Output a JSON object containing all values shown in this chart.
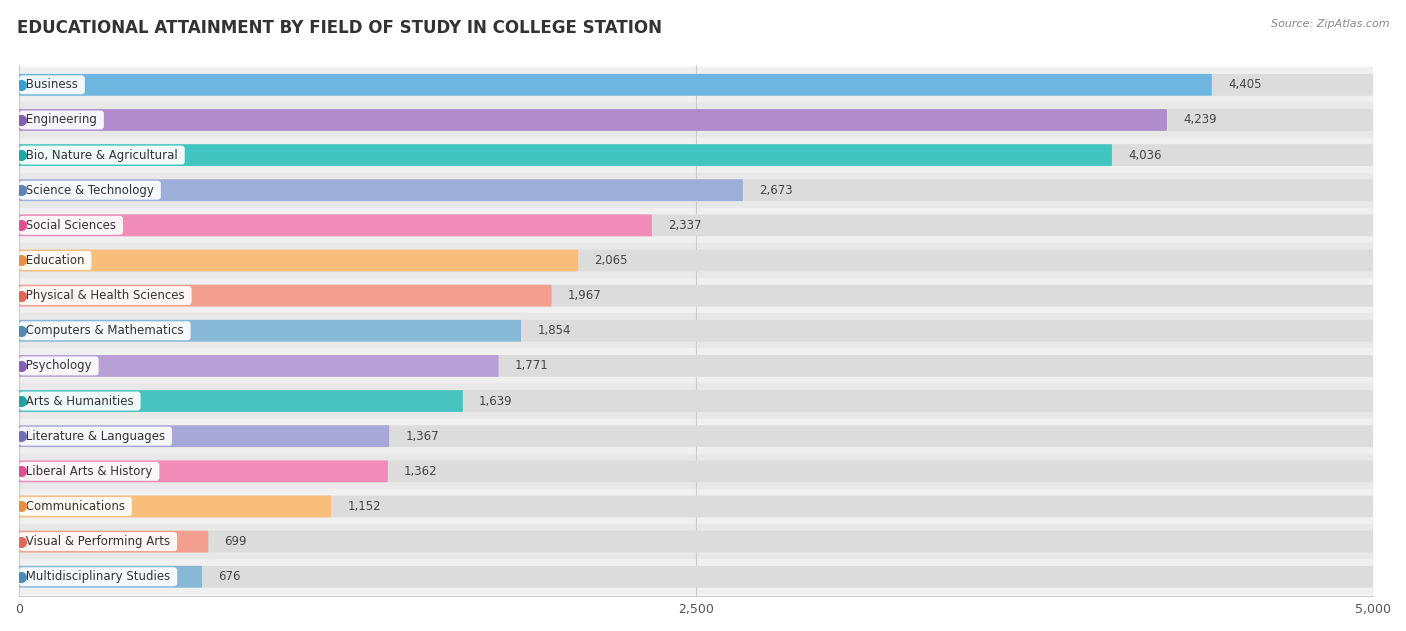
{
  "title": "EDUCATIONAL ATTAINMENT BY FIELD OF STUDY IN COLLEGE STATION",
  "source": "Source: ZipAtlas.com",
  "categories": [
    "Business",
    "Engineering",
    "Bio, Nature & Agricultural",
    "Science & Technology",
    "Social Sciences",
    "Education",
    "Physical & Health Sciences",
    "Computers & Mathematics",
    "Psychology",
    "Arts & Humanities",
    "Literature & Languages",
    "Liberal Arts & History",
    "Communications",
    "Visual & Performing Arts",
    "Multidisciplinary Studies"
  ],
  "values": [
    4405,
    4239,
    4036,
    2673,
    2337,
    2065,
    1967,
    1854,
    1771,
    1639,
    1367,
    1362,
    1152,
    699,
    676
  ],
  "bar_colors": [
    "#6eb5e0",
    "#b08ccc",
    "#42c4c0",
    "#9daed8",
    "#f08cb5",
    "#f8be7a",
    "#f4a090",
    "#88b8d8",
    "#b8a0d4",
    "#48c4c0",
    "#a8a8d8",
    "#f08cb5",
    "#f8be7a",
    "#f4a090",
    "#88b8d8"
  ],
  "dot_colors": [
    "#3a9fd4",
    "#8060b0",
    "#20a8a8",
    "#6080b8",
    "#e05090",
    "#e89040",
    "#e06858",
    "#5088b8",
    "#8060b8",
    "#20a0a0",
    "#7070b8",
    "#e05090",
    "#e89040",
    "#e06858",
    "#5088b8"
  ],
  "bg_row_colors": [
    "#f0f0f0",
    "#e8e8e8"
  ],
  "bar_bg_color": "#dcdcdc",
  "xlim": [
    0,
    5000
  ],
  "xticks": [
    0,
    2500,
    5000
  ],
  "bg_color": "#ffffff",
  "title_fontsize": 12,
  "label_fontsize": 8.5,
  "value_fontsize": 8.5,
  "bar_height": 0.62
}
